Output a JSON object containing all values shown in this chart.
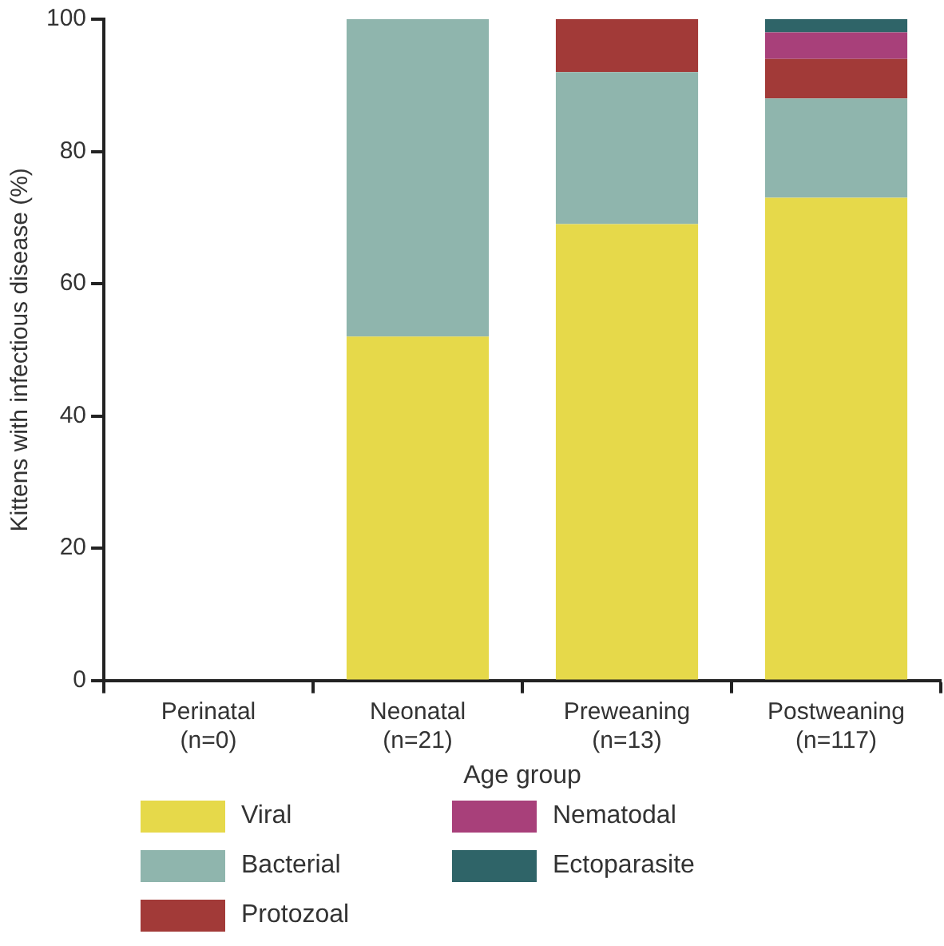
{
  "chart_data": {
    "type": "bar",
    "stacked": true,
    "xlabel": "Age group",
    "ylabel": "Kittens with infectious disease (%)",
    "categories": [
      "Perinatal\n(n=0)",
      "Neonatal\n(n=21)",
      "Preweaning\n(n=13)",
      "Postweaning\n(n=117)"
    ],
    "series": [
      {
        "name": "Viral",
        "color": "#e6d94a",
        "values": [
          0,
          52,
          69,
          73
        ]
      },
      {
        "name": "Bacterial",
        "color": "#8fb5ad",
        "values": [
          0,
          48,
          23,
          15
        ]
      },
      {
        "name": "Protozoal",
        "color": "#a23a38",
        "values": [
          0,
          0,
          8,
          6
        ]
      },
      {
        "name": "Nematodal",
        "color": "#a8407a",
        "values": [
          0,
          0,
          0,
          4
        ]
      },
      {
        "name": "Ectoparasite",
        "color": "#2f6468",
        "values": [
          0,
          0,
          0,
          2
        ]
      }
    ],
    "ylim": [
      0,
      100
    ],
    "yticks": [
      0,
      20,
      40,
      60,
      80,
      100
    ],
    "grid": false,
    "legend": "bottom"
  }
}
